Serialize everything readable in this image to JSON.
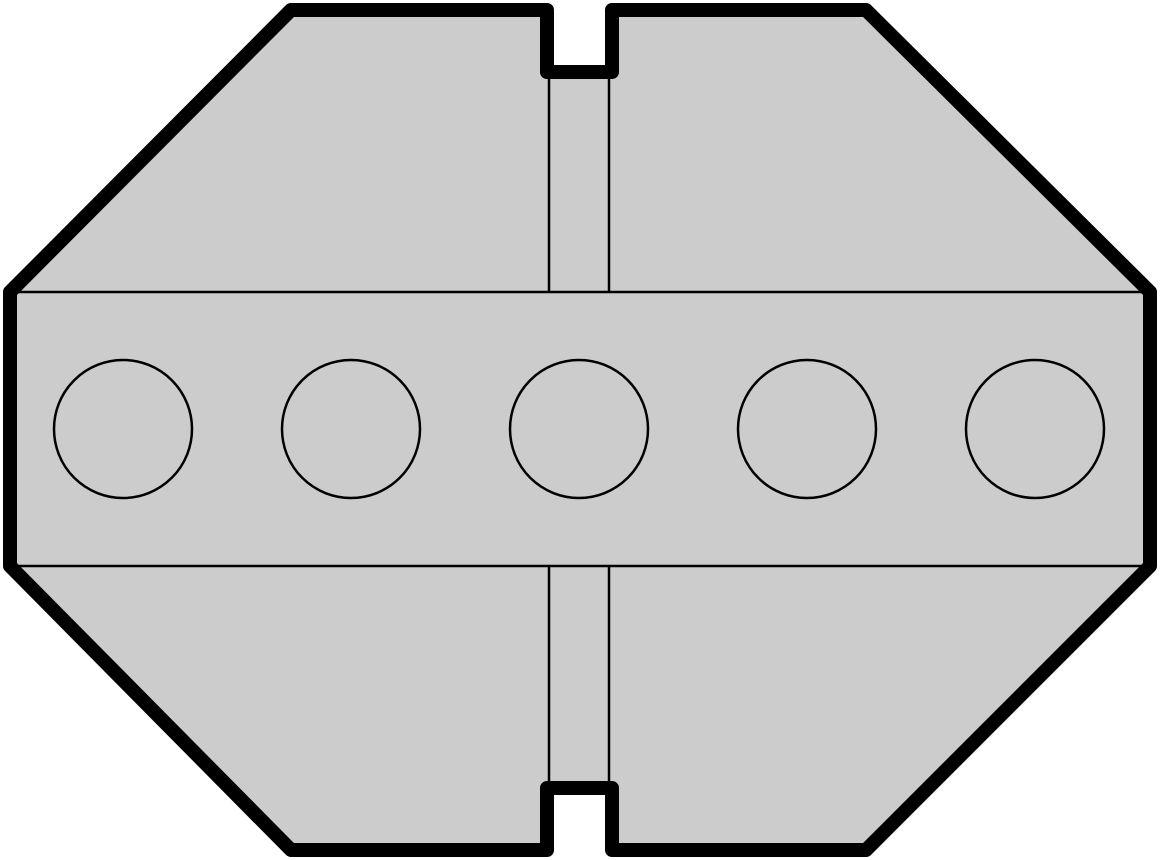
{
  "diagram": {
    "fill_color": "#cccccc",
    "outline_color": "#000000",
    "line_color": "#000000",
    "hole_count": 5
  }
}
